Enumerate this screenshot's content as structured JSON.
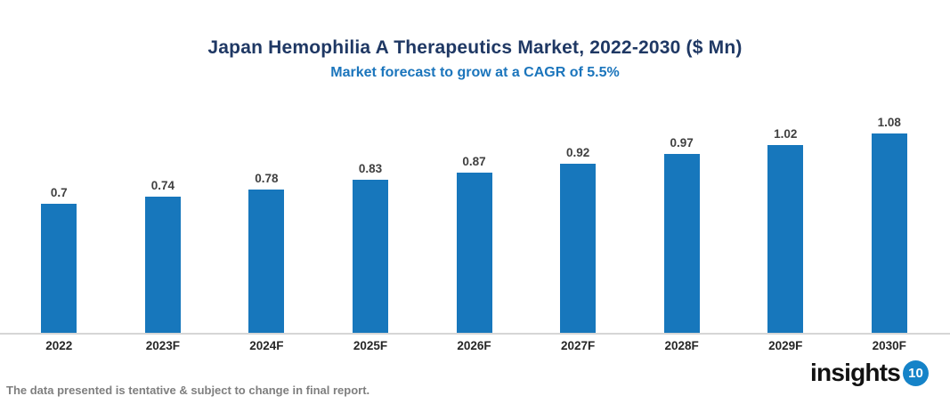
{
  "header": {
    "title": "Japan Hemophilia A Therapeutics Market, 2022-2030 ($ Mn)",
    "subtitle": "Market forecast to grow at a CAGR of 5.5%"
  },
  "chart_data": {
    "type": "bar",
    "title": "Japan Hemophilia A Therapeutics Market, 2022-2030 ($ Mn)",
    "subtitle": "Market forecast to grow at a CAGR of 5.5%",
    "categories": [
      "2022",
      "2023F",
      "2024F",
      "2025F",
      "2026F",
      "2027F",
      "2028F",
      "2029F",
      "2030F"
    ],
    "values": [
      0.7,
      0.74,
      0.78,
      0.83,
      0.87,
      0.92,
      0.97,
      1.02,
      1.08
    ],
    "value_labels": [
      "0.7",
      "0.74",
      "0.78",
      "0.83",
      "0.87",
      "0.92",
      "0.97",
      "1.02",
      "1.08"
    ],
    "xlabel": "",
    "ylabel": "",
    "ylim": [
      0,
      1.15
    ],
    "grid": false,
    "legend_position": "none",
    "data_labels_position": "above-bar",
    "bar_color": "#1777BC"
  },
  "footer": {
    "disclaimer": "The data presented is tentative & subject to change in final report.",
    "logo_text": "insights",
    "logo_badge": "10"
  },
  "colors": {
    "title": "#1F3864",
    "subtitle": "#1B75BC",
    "bar": "#1777BC",
    "axis_line": "#D6D6D6",
    "value_label": "#404040",
    "category_label": "#262626",
    "disclaimer": "#7F7F7F",
    "logo_text": "#121212",
    "logo_badge_bg": "#1583C8"
  }
}
